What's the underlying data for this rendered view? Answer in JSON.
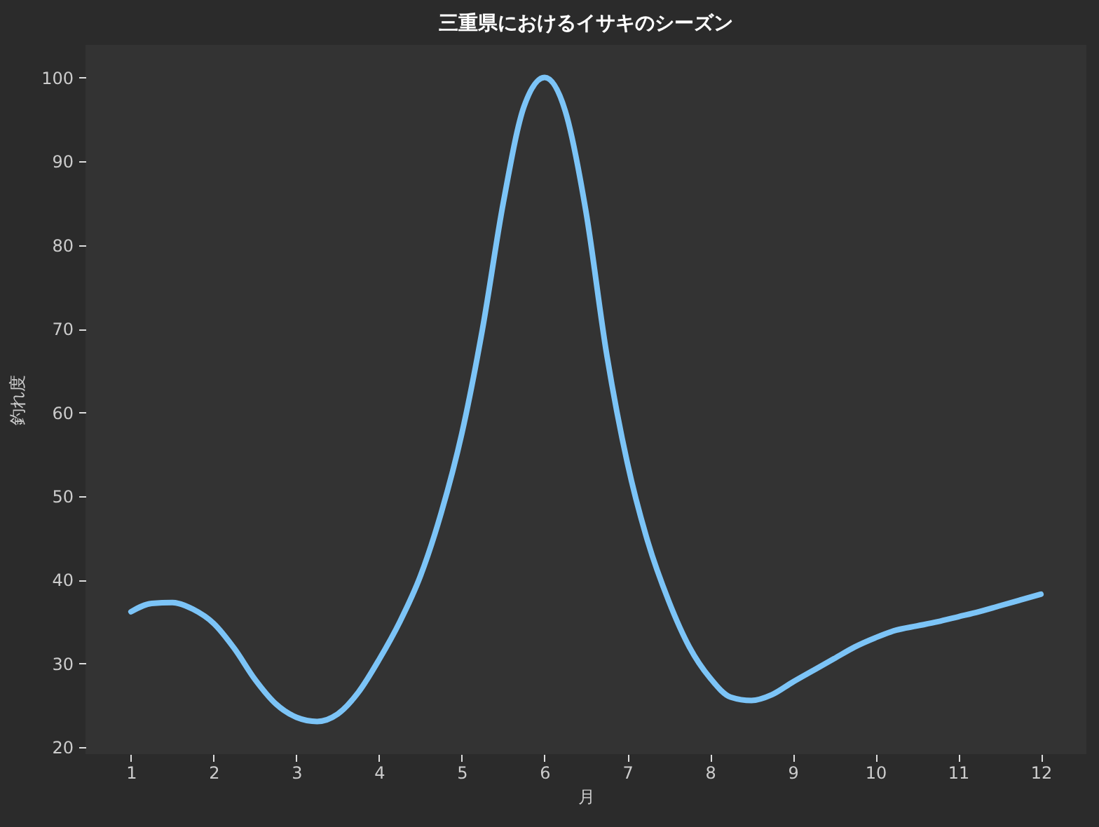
{
  "chart_data": {
    "type": "line",
    "title": "三重県におけるイサキのシーズン",
    "xlabel": "月",
    "ylabel": "釣れ度",
    "x": [
      1.0,
      1.25,
      1.5,
      1.75,
      2.0,
      2.25,
      2.5,
      2.75,
      3.0,
      3.25,
      3.5,
      3.75,
      4.0,
      4.25,
      4.5,
      4.75,
      5.0,
      5.25,
      5.5,
      5.75,
      6.0,
      6.25,
      6.5,
      6.75,
      7.0,
      7.25,
      7.5,
      7.75,
      8.0,
      8.25,
      8.5,
      8.75,
      9.0,
      9.25,
      9.5,
      9.75,
      10.0,
      10.25,
      10.5,
      10.75,
      11.0,
      11.25,
      11.5,
      11.75,
      12.0
    ],
    "series": [
      {
        "color": "#7cc4f7",
        "values": [
          36.2,
          37.2,
          37.3,
          36.5,
          34.8,
          31.8,
          28.1,
          25.2,
          23.6,
          23.1,
          24.0,
          26.6,
          30.5,
          35.0,
          40.5,
          48.0,
          57.5,
          70.0,
          85.0,
          96.5,
          100,
          96.0,
          84.0,
          67.0,
          54.0,
          44.5,
          37.5,
          32.0,
          28.3,
          26.0,
          25.6,
          26.3,
          27.8,
          29.2,
          30.6,
          32.0,
          33.1,
          34.0,
          34.5,
          35.0,
          35.6,
          36.2,
          36.9,
          37.6,
          38.3
        ]
      }
    ],
    "xlim": [
      0.45,
      12.55
    ],
    "ylim": [
      19.2,
      103.9
    ],
    "xticks": [
      1,
      2,
      3,
      4,
      5,
      6,
      7,
      8,
      9,
      10,
      11,
      12
    ],
    "yticks": [
      20,
      30,
      40,
      50,
      60,
      70,
      80,
      90,
      100
    ],
    "grid": false,
    "marker": "none",
    "line_style": "solid"
  }
}
